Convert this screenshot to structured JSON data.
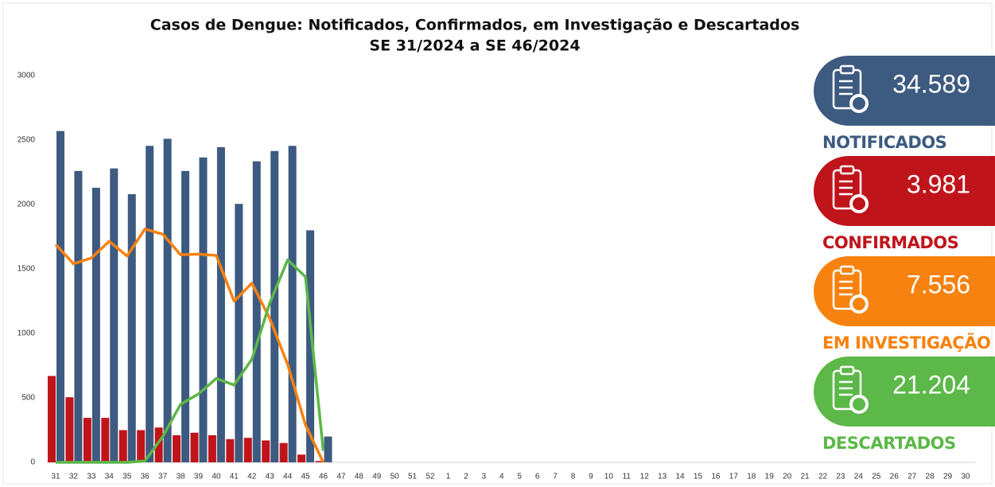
{
  "chart_data": {
    "type": "bar",
    "title": "Casos de Dengue: Notificados, Confirmados, em Investigação e Descartados",
    "subtitle": "SE 31/2024 a SE 46/2024",
    "categories": [
      31,
      32,
      33,
      34,
      35,
      36,
      37,
      38,
      39,
      40,
      41,
      42,
      43,
      44,
      45,
      46,
      47,
      48,
      49,
      50,
      51,
      52,
      1,
      2,
      3,
      4,
      5,
      6,
      7,
      8,
      9,
      10,
      11,
      12,
      13,
      14,
      15,
      16,
      17,
      18,
      19,
      20,
      21,
      22,
      23,
      24,
      25,
      26,
      27,
      28,
      29,
      30
    ],
    "ylim": [
      0,
      3000
    ],
    "yticks": [
      0,
      500,
      1000,
      1500,
      2000,
      2500,
      3000
    ],
    "series": [
      {
        "name": "NOTIFICADOS",
        "total": "34.589",
        "type": "bar",
        "color": "#3d5a80",
        "values": [
          2570,
          2260,
          2130,
          2280,
          2080,
          2455,
          2510,
          2260,
          2365,
          2445,
          2005,
          2335,
          2415,
          2455,
          1800,
          200,
          null,
          null,
          null,
          null,
          null,
          null,
          null,
          null,
          null,
          null,
          null,
          null,
          null,
          null,
          null,
          null,
          null,
          null,
          null,
          null,
          null,
          null,
          null,
          null,
          null,
          null,
          null,
          null,
          null,
          null,
          null,
          null,
          null,
          null,
          null,
          null
        ]
      },
      {
        "name": "CONFIRMADOS",
        "total": "3.981",
        "type": "bar",
        "color": "#c0141b",
        "values": [
          670,
          505,
          345,
          345,
          250,
          250,
          270,
          210,
          230,
          210,
          180,
          190,
          170,
          150,
          60,
          10,
          null,
          null,
          null,
          null,
          null,
          null,
          null,
          null,
          null,
          null,
          null,
          null,
          null,
          null,
          null,
          null,
          null,
          null,
          null,
          null,
          null,
          null,
          null,
          null,
          null,
          null,
          null,
          null,
          null,
          null,
          null,
          null,
          null,
          null,
          null,
          null
        ]
      },
      {
        "name": "EM INVESTIGAÇÃO",
        "total": "7.556",
        "type": "line",
        "color": "#f7820f",
        "values": [
          1690,
          1540,
          1585,
          1715,
          1600,
          1810,
          1770,
          1610,
          1615,
          1605,
          1250,
          1390,
          1115,
          760,
          290,
          0,
          null,
          null,
          null,
          null,
          null,
          null,
          null,
          null,
          null,
          null,
          null,
          null,
          null,
          null,
          null,
          null,
          null,
          null,
          null,
          null,
          null,
          null,
          null,
          null,
          null,
          null,
          null,
          null,
          null,
          null,
          null,
          null,
          null,
          null,
          null,
          null
        ]
      },
      {
        "name": "DESCARTADOS",
        "total": "21.204",
        "type": "line",
        "color": "#5cb848",
        "values": [
          0,
          0,
          0,
          0,
          0,
          10,
          200,
          450,
          530,
          650,
          600,
          800,
          1235,
          1570,
          1440,
          90,
          null,
          null,
          null,
          null,
          null,
          null,
          null,
          null,
          null,
          null,
          null,
          null,
          null,
          null,
          null,
          null,
          null,
          null,
          null,
          null,
          null,
          null,
          null,
          null,
          null,
          null,
          null,
          null,
          null,
          null,
          null,
          null,
          null,
          null,
          null,
          null
        ]
      }
    ]
  }
}
